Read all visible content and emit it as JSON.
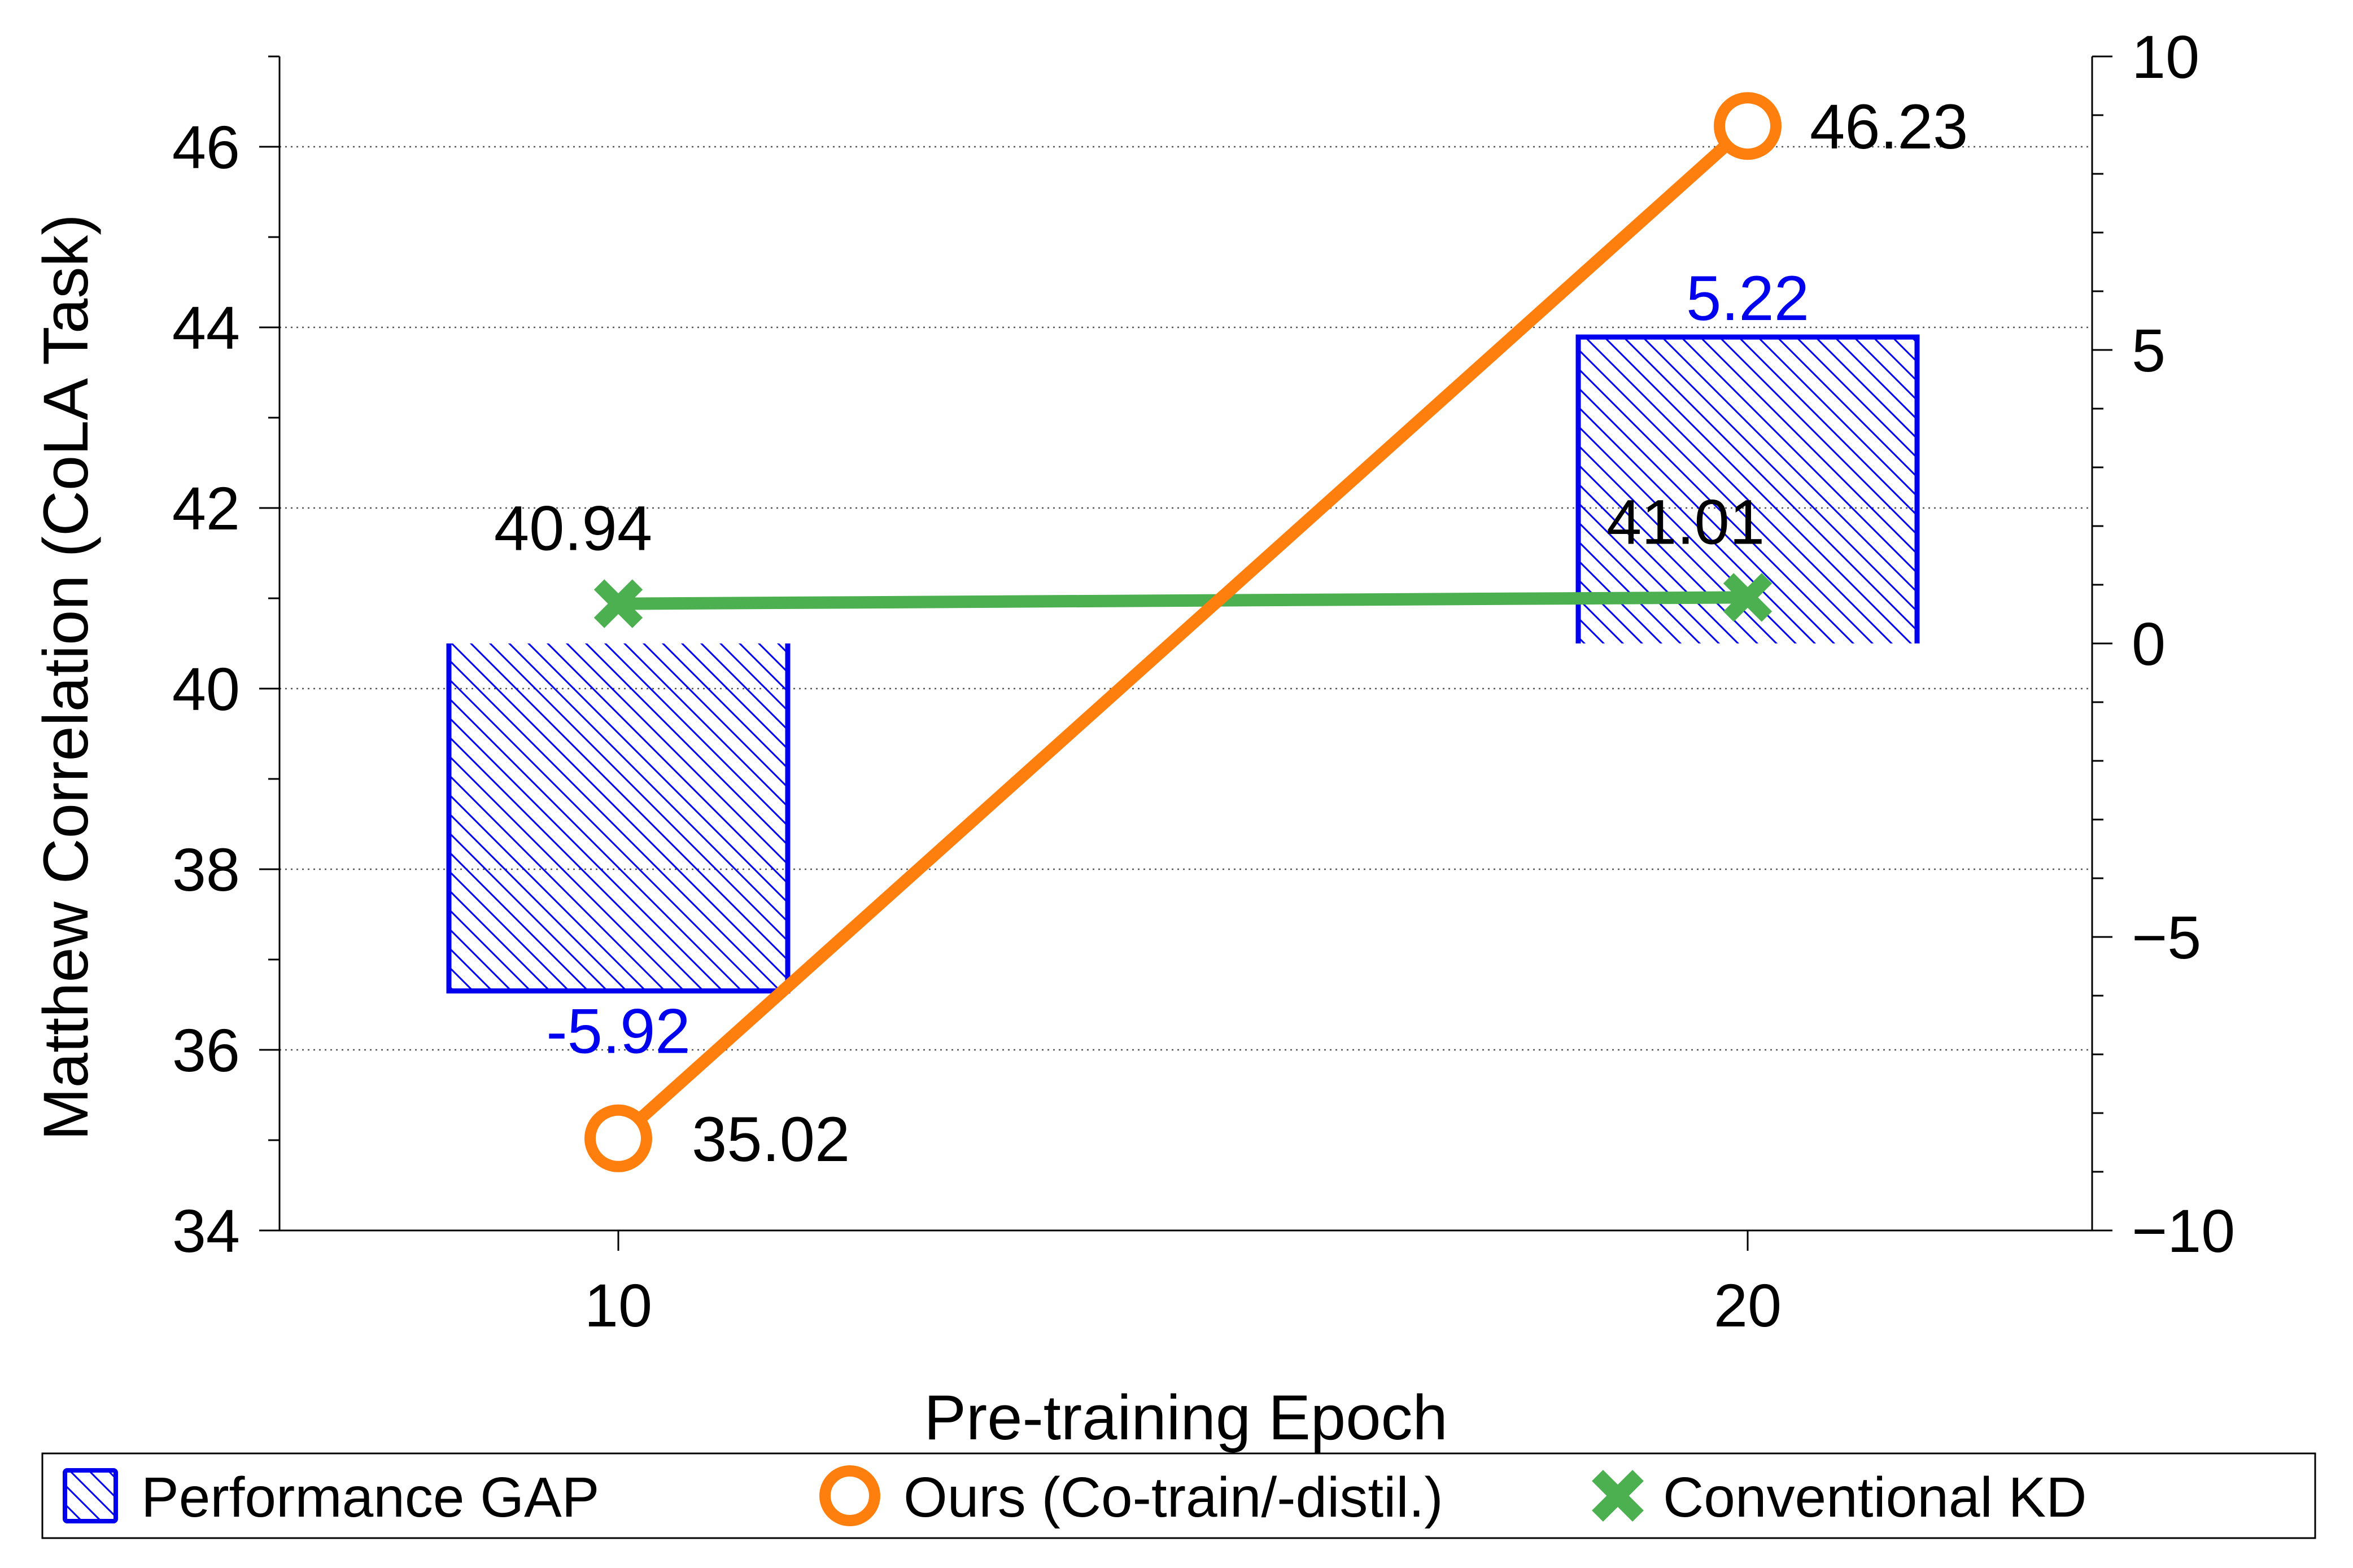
{
  "chart_data": {
    "type": "line",
    "x": [
      10,
      20
    ],
    "xlabel": "Pre-training Epoch",
    "ylabel": "Matthew Correlation (CoLA Task)",
    "ylim": [
      34,
      47
    ],
    "y_ticks": [
      34,
      36,
      38,
      40,
      42,
      44,
      46
    ],
    "y2lim": [
      -10,
      10
    ],
    "y2_ticks": [
      -10,
      -5,
      0,
      5,
      10
    ],
    "y2_tick_labels": [
      "−10",
      "−5",
      "0",
      "5",
      "10"
    ],
    "x_ticks": [
      10,
      20
    ],
    "grid": "horizontal dotted",
    "legend_position": "bottom",
    "series": [
      {
        "name": "Ours (Co-train/-distil.)",
        "type": "line",
        "axis": "left",
        "values": [
          35.02,
          46.23
        ],
        "labels": [
          "35.02",
          "46.23"
        ],
        "color": "#ff7f0e"
      },
      {
        "name": "Conventional KD",
        "type": "line",
        "axis": "left",
        "values": [
          40.94,
          41.01
        ],
        "labels": [
          "40.94",
          "41.01"
        ],
        "color": "#4caf50"
      },
      {
        "name": "Performance GAP",
        "type": "bar",
        "axis": "right",
        "values": [
          -5.92,
          5.22
        ],
        "labels": [
          "-5.92",
          "5.22"
        ],
        "color": "#0000ee"
      }
    ]
  }
}
